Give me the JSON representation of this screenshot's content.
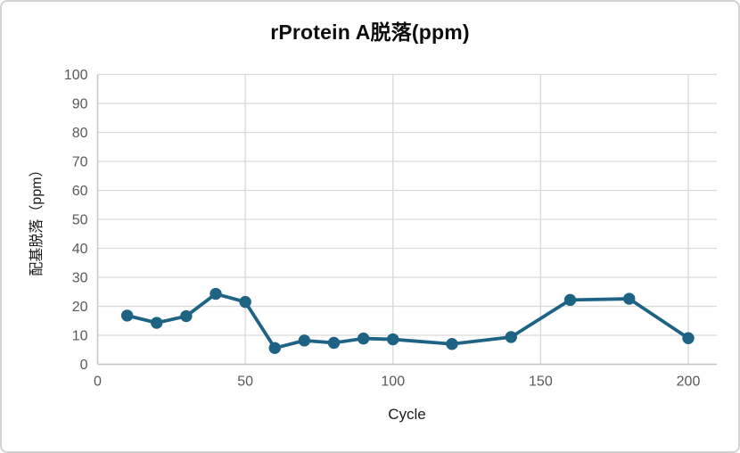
{
  "chart_data": {
    "type": "line",
    "title": "rProtein A脱落(ppm)",
    "xlabel": "Cycle",
    "ylabel": "配基脱落（ppm）",
    "x": [
      10,
      20,
      30,
      40,
      50,
      60,
      70,
      80,
      90,
      100,
      120,
      140,
      160,
      180,
      200
    ],
    "y": [
      16.8,
      14.3,
      16.6,
      24.3,
      21.5,
      5.6,
      8.2,
      7.4,
      8.9,
      8.6,
      7.0,
      9.4,
      22.2,
      22.6,
      9.0
    ],
    "xlim": [
      0,
      200
    ],
    "ylim": [
      0,
      100
    ],
    "x_ticks": [
      0,
      50,
      100,
      150,
      200
    ],
    "y_ticks": [
      0,
      10,
      20,
      30,
      40,
      50,
      60,
      70,
      80,
      90,
      100
    ],
    "grid": true,
    "legend": "none",
    "line_color": "#1f6384",
    "grid_color": "#d9d9d9",
    "axis_color": "#c6c6c6",
    "tick_label_color": "#595959"
  }
}
